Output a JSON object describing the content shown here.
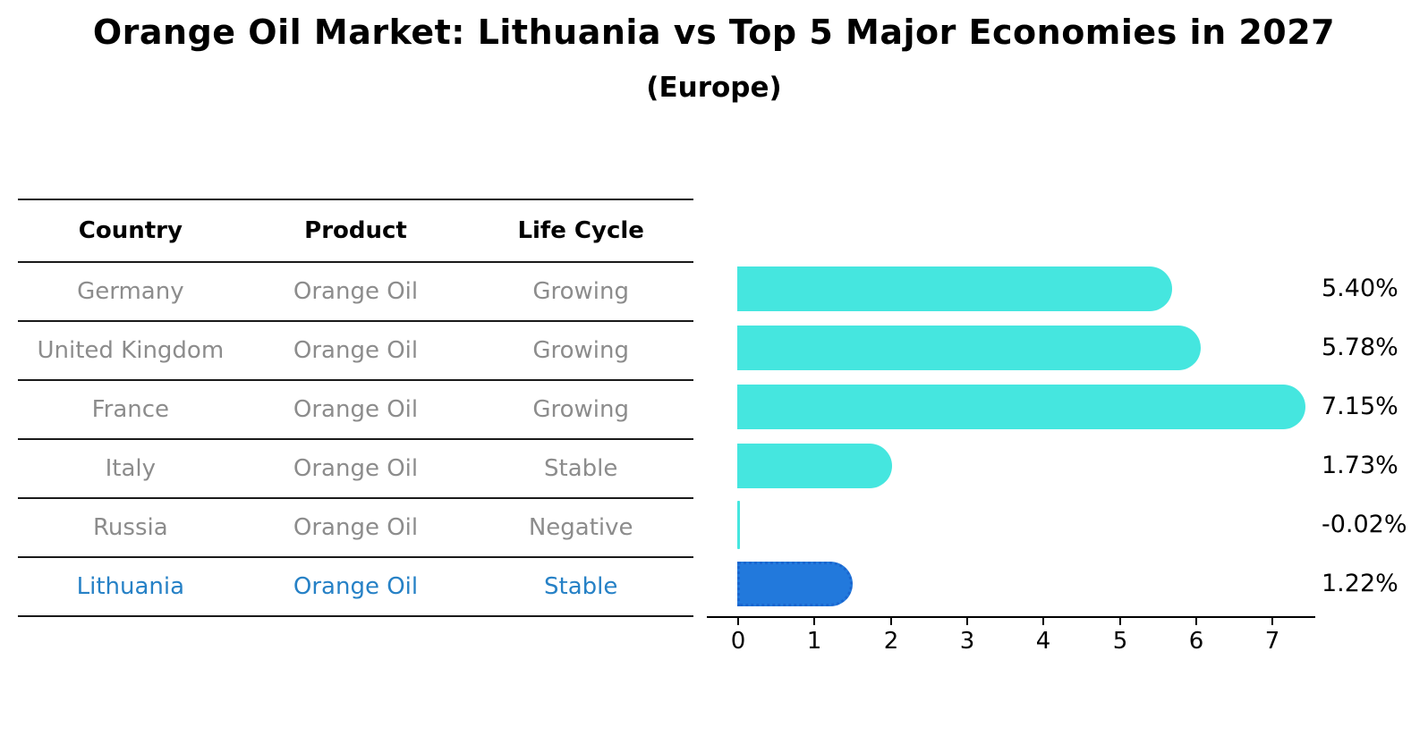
{
  "title": "Orange Oil Market: Lithuania vs Top 5 Major Economies in 2027",
  "subtitle": "(Europe)",
  "colors": {
    "bar": "#45e6df",
    "highlight_bar": "#2279dc",
    "highlight_bar_border": "#1a66cf",
    "highlight_text": "#2681c6",
    "table_text": "#8c8c8c",
    "header_text": "#000000",
    "line": "#1a1a1a"
  },
  "table": {
    "headers": [
      "Country",
      "Product",
      "Life Cycle"
    ],
    "rows": [
      {
        "cells": [
          "Germany",
          "Orange Oil",
          "Growing"
        ],
        "highlight": false
      },
      {
        "cells": [
          "United Kingdom",
          "Orange Oil",
          "Growing"
        ],
        "highlight": false
      },
      {
        "cells": [
          "France",
          "Orange Oil",
          "Growing"
        ],
        "highlight": false
      },
      {
        "cells": [
          "Italy",
          "Orange Oil",
          "Stable"
        ],
        "highlight": false
      },
      {
        "cells": [
          "Russia",
          "Orange Oil",
          "Negative"
        ],
        "highlight": false
      },
      {
        "cells": [
          "Lithuania",
          "Orange Oil",
          "Stable"
        ],
        "highlight": true
      }
    ]
  },
  "chart_data": {
    "type": "bar",
    "orientation": "horizontal",
    "title": "Orange Oil Market: Lithuania vs Top 5 Major Economies in 2027",
    "subtitle": "(Europe)",
    "categories": [
      "Germany",
      "United Kingdom",
      "France",
      "Italy",
      "Russia",
      "Lithuania"
    ],
    "values": [
      5.4,
      5.78,
      7.15,
      1.73,
      -0.02,
      1.22
    ],
    "value_labels": [
      "5.40%",
      "5.78%",
      "7.15%",
      "1.73%",
      "-0.02%",
      "1.22%"
    ],
    "highlight_index": 5,
    "xlim": [
      0,
      7.6
    ],
    "xticks": [
      "0",
      "1",
      "2",
      "3",
      "4",
      "5",
      "6",
      "7"
    ],
    "grid": false,
    "legend": "none",
    "xlabel": "",
    "ylabel": ""
  }
}
